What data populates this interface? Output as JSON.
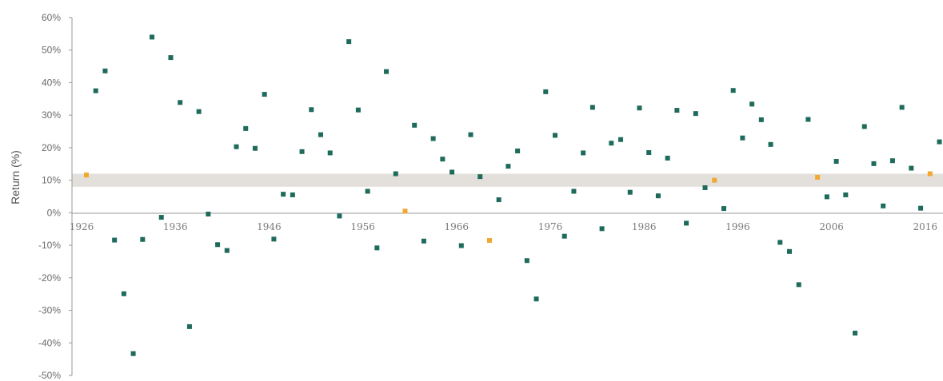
{
  "chart_data": {
    "type": "scatter",
    "title": "",
    "xlabel": "",
    "ylabel": "Return (%)",
    "xlim": [
      1926,
      2017
    ],
    "ylim": [
      -50,
      60
    ],
    "y_ticks": [
      "60%",
      "50%",
      "40%",
      "30%",
      "20%",
      "10%",
      "0%",
      "-10%",
      "-20%",
      "-30%",
      "-40%",
      "-50%"
    ],
    "y_tick_values": [
      60,
      50,
      40,
      30,
      20,
      10,
      0,
      -10,
      -20,
      -30,
      -40,
      -50
    ],
    "x_ticks": [
      "1926",
      "1936",
      "1946",
      "1956",
      "1966",
      "1976",
      "1986",
      "1996",
      "2006",
      "2016"
    ],
    "x_tick_values": [
      1926,
      1936,
      1946,
      1956,
      1966,
      1976,
      1986,
      1996,
      2006,
      2016
    ],
    "band": {
      "from": 8,
      "to": 12,
      "color": "#e3e0dc"
    },
    "colors": {
      "point": "#1e6b5c",
      "highlight": "#f0a830",
      "axis": "#9a9a9a"
    },
    "grid": false,
    "x": [
      1926,
      1927,
      1928,
      1929,
      1930,
      1931,
      1932,
      1933,
      1934,
      1935,
      1936,
      1937,
      1938,
      1939,
      1940,
      1941,
      1942,
      1943,
      1944,
      1945,
      1946,
      1947,
      1948,
      1949,
      1950,
      1951,
      1952,
      1953,
      1954,
      1955,
      1956,
      1957,
      1958,
      1959,
      1960,
      1961,
      1962,
      1963,
      1964,
      1965,
      1966,
      1967,
      1968,
      1969,
      1970,
      1971,
      1972,
      1973,
      1974,
      1975,
      1976,
      1977,
      1978,
      1979,
      1980,
      1981,
      1982,
      1983,
      1984,
      1985,
      1986,
      1987,
      1988,
      1989,
      1990,
      1991,
      1992,
      1993,
      1994,
      1995,
      1996,
      1997,
      1998,
      1999,
      2000,
      2001,
      2002,
      2003,
      2004,
      2005,
      2006,
      2007,
      2008,
      2009,
      2010,
      2011,
      2012,
      2013,
      2014,
      2015,
      2016,
      2017
    ],
    "y": [
      11.6,
      37.5,
      43.6,
      -8.4,
      -24.9,
      -43.3,
      -8.2,
      54.0,
      -1.4,
      47.7,
      33.9,
      -35.0,
      31.1,
      -0.4,
      -9.8,
      -11.6,
      20.3,
      25.9,
      19.8,
      36.4,
      -8.1,
      5.7,
      5.5,
      18.8,
      31.7,
      24.0,
      18.4,
      -1.0,
      52.6,
      31.6,
      6.6,
      -10.8,
      43.4,
      12.0,
      0.5,
      26.9,
      -8.7,
      22.8,
      16.5,
      12.5,
      -10.1,
      24.0,
      11.1,
      -8.5,
      4.0,
      14.3,
      19.0,
      -14.7,
      -26.5,
      37.2,
      23.8,
      -7.2,
      6.6,
      18.4,
      32.4,
      -4.9,
      21.4,
      22.5,
      6.3,
      32.2,
      18.5,
      5.2,
      16.8,
      31.5,
      -3.2,
      30.5,
      7.7,
      10.0,
      1.3,
      37.6,
      23.0,
      33.4,
      28.6,
      21.0,
      -9.1,
      -11.9,
      -22.1,
      28.7,
      10.9,
      4.9,
      15.8,
      5.5,
      -37.0,
      26.5,
      15.1,
      2.1,
      16.0,
      32.4,
      13.7,
      1.4,
      12.0,
      21.8
    ],
    "highlight_years": [
      1926,
      1960,
      1969,
      1993,
      2004,
      2016
    ]
  }
}
